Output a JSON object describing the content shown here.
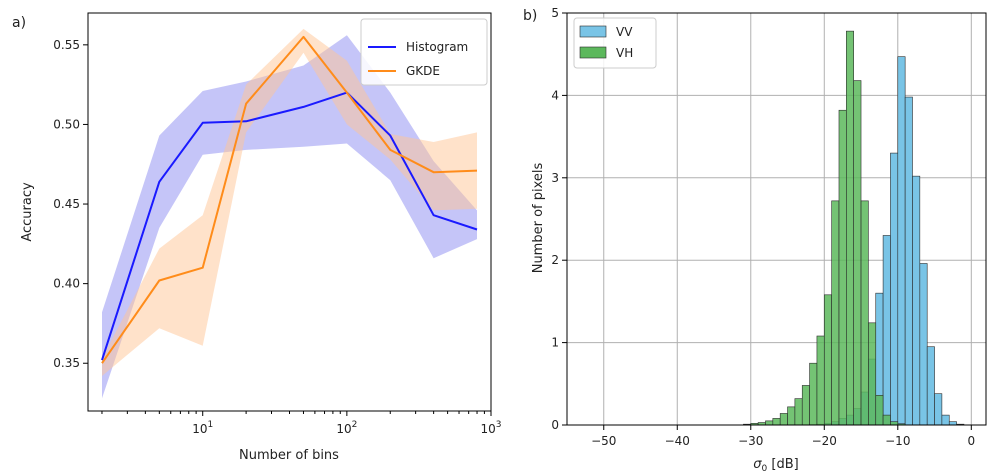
{
  "chart_data": [
    {
      "panel_label": "a)",
      "type": "line",
      "xscale": "log",
      "xlabel": "Number of bins",
      "ylabel": "Accuracy",
      "xlim": [
        1.6,
        1000
      ],
      "ylim": [
        0.32,
        0.57
      ],
      "x_ticks": [
        {
          "v": 10,
          "base": "10",
          "exp": "1"
        },
        {
          "v": 100,
          "base": "10",
          "exp": "2"
        },
        {
          "v": 1000,
          "base": "10",
          "exp": "3"
        }
      ],
      "y_ticks": [
        "0.35",
        "0.40",
        "0.45",
        "0.50",
        "0.55"
      ],
      "legend_position": "top-right",
      "series": [
        {
          "name": "Histogram",
          "color": "#1a1aff",
          "band_color": "#8c8cf2",
          "x": [
            2,
            5,
            10,
            20,
            50,
            100,
            200,
            400,
            800
          ],
          "y": [
            0.352,
            0.464,
            0.501,
            0.502,
            0.511,
            0.52,
            0.493,
            0.443,
            0.434
          ],
          "lower": [
            0.328,
            0.435,
            0.481,
            0.484,
            0.486,
            0.488,
            0.465,
            0.416,
            0.428
          ],
          "upper": [
            0.382,
            0.493,
            0.521,
            0.527,
            0.537,
            0.556,
            0.52,
            0.477,
            0.446
          ]
        },
        {
          "name": "GKDE",
          "color": "#ff8c1a",
          "band_color": "#ffc596",
          "x": [
            2,
            5,
            10,
            20,
            50,
            100,
            200,
            400,
            800
          ],
          "y": [
            0.35,
            0.402,
            0.41,
            0.513,
            0.555,
            0.52,
            0.484,
            0.47,
            0.471
          ],
          "lower": [
            0.342,
            0.372,
            0.361,
            0.495,
            0.545,
            0.5,
            0.478,
            0.446,
            0.447
          ],
          "upper": [
            0.353,
            0.422,
            0.443,
            0.525,
            0.56,
            0.54,
            0.494,
            0.489,
            0.495
          ]
        }
      ]
    },
    {
      "panel_label": "b)",
      "type": "bar",
      "subtype": "histogram",
      "xlabel_base": "σ",
      "xlabel_sub": "0",
      "xlabel_rest": " [dB]",
      "ylabel": "Number of pixels",
      "xlim": [
        -55,
        2
      ],
      "ylim": [
        0,
        5
      ],
      "x_ticks": [
        "−50",
        "−40",
        "−30",
        "−20",
        "−10",
        "0"
      ],
      "x_tick_values": [
        -50,
        -40,
        -30,
        -20,
        -10,
        0
      ],
      "y_ticks": [
        "0",
        "1",
        "2",
        "3",
        "4",
        "5"
      ],
      "grid": true,
      "legend_position": "top-left",
      "bin_width": 1,
      "series": [
        {
          "name": "VV",
          "color": "#79c4e6",
          "bin_start": -22,
          "counts": [
            0.005,
            0.01,
            0.02,
            0.04,
            0.08,
            0.12,
            0.2,
            0.4,
            0.8,
            1.6,
            2.3,
            3.3,
            4.47,
            3.98,
            3.02,
            1.96,
            0.95,
            0.38,
            0.12,
            0.04,
            0.01
          ]
        },
        {
          "name": "VH",
          "color": "#5cb85c",
          "bin_start": -31,
          "counts": [
            0.01,
            0.02,
            0.03,
            0.05,
            0.08,
            0.14,
            0.22,
            0.32,
            0.48,
            0.75,
            1.08,
            1.58,
            2.72,
            3.82,
            4.78,
            4.18,
            2.72,
            1.24,
            0.36,
            0.12,
            0.04,
            0.015
          ]
        }
      ]
    }
  ]
}
